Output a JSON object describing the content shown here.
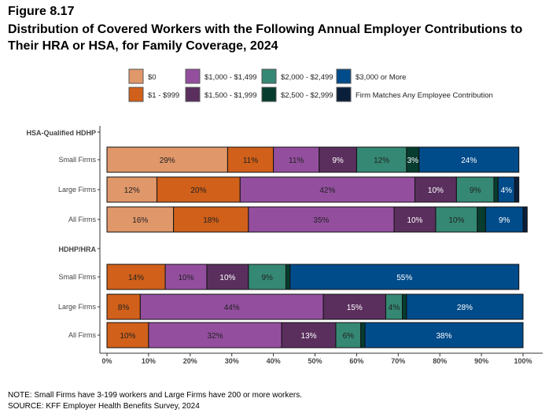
{
  "figure_label": "Figure 8.17",
  "title": "Distribution of Covered Workers with the Following Annual Employer Contributions to Their HRA or HSA, for Family Coverage, 2024",
  "notes": [
    "NOTE: Small Firms have 3-199 workers and Large Firms have 200 or more workers.",
    "SOURCE: KFF Employer Health Benefits Survey, 2024"
  ],
  "chart_data": {
    "type": "bar",
    "orientation": "horizontal",
    "stacked": true,
    "xlim": [
      0,
      100
    ],
    "x_ticks": [
      "0%",
      "10%",
      "20%",
      "30%",
      "40%",
      "50%",
      "60%",
      "70%",
      "80%",
      "90%",
      "100%"
    ],
    "legend_placement": "top",
    "grid": false,
    "groups": [
      {
        "label": "HSA-Qualified HDHP",
        "rows": [
          {
            "label": "Small Firms",
            "values": [
              29,
              11,
              11,
              9,
              12,
              3,
              24,
              0
            ],
            "labels": [
              "29%",
              "11%",
              "11%",
              "9%",
              "12%",
              "3%",
              "24%",
              ""
            ]
          },
          {
            "label": "Large Firms",
            "values": [
              12,
              20,
              42,
              10,
              9,
              1,
              4,
              1
            ],
            "labels": [
              "12%",
              "20%",
              "42%",
              "10%",
              "9%",
              "",
              "4%",
              ""
            ]
          },
          {
            "label": "All Firms",
            "values": [
              16,
              18,
              35,
              10,
              10,
              2,
              9,
              1
            ],
            "labels": [
              "16%",
              "18%",
              "35%",
              "10%",
              "10%",
              "",
              "9%",
              ""
            ]
          }
        ]
      },
      {
        "label": "HDHP/HRA",
        "rows": [
          {
            "label": "Small Firms",
            "values": [
              0,
              14,
              10,
              10,
              9,
              1,
              55,
              0
            ],
            "labels": [
              "",
              "14%",
              "10%",
              "10%",
              "9%",
              "",
              "55%",
              ""
            ]
          },
          {
            "label": "Large Firms",
            "values": [
              0,
              8,
              44,
              15,
              4,
              1,
              28,
              0
            ],
            "labels": [
              "",
              "8%",
              "44%",
              "15%",
              "4%",
              "",
              "28%",
              ""
            ]
          },
          {
            "label": "All Firms",
            "values": [
              0,
              10,
              32,
              13,
              6,
              1,
              38,
              0
            ],
            "labels": [
              "",
              "10%",
              "32%",
              "13%",
              "6%",
              "",
              "38%",
              ""
            ]
          }
        ]
      }
    ],
    "series": [
      {
        "name": "$0",
        "color": "#E0976A",
        "text_color": "#222222"
      },
      {
        "name": "$1 - $999",
        "color": "#D0601A",
        "text_color": "#222222"
      },
      {
        "name": "$1,000 - $1,499",
        "color": "#934F9E",
        "text_color": "#222222"
      },
      {
        "name": "$1,500 - $1,999",
        "color": "#5A2F5E",
        "text_color": "#ffffff"
      },
      {
        "name": "$2,000 - $2,499",
        "color": "#358873",
        "text_color": "#222222"
      },
      {
        "name": "$2,500 - $2,999",
        "color": "#063D2E",
        "text_color": "#ffffff"
      },
      {
        "name": "$3,000 or More",
        "color": "#004B8A",
        "text_color": "#ffffff"
      },
      {
        "name": "Firm Matches Any Employee Contribution",
        "color": "#0B1F3A",
        "text_color": "#ffffff"
      }
    ]
  }
}
